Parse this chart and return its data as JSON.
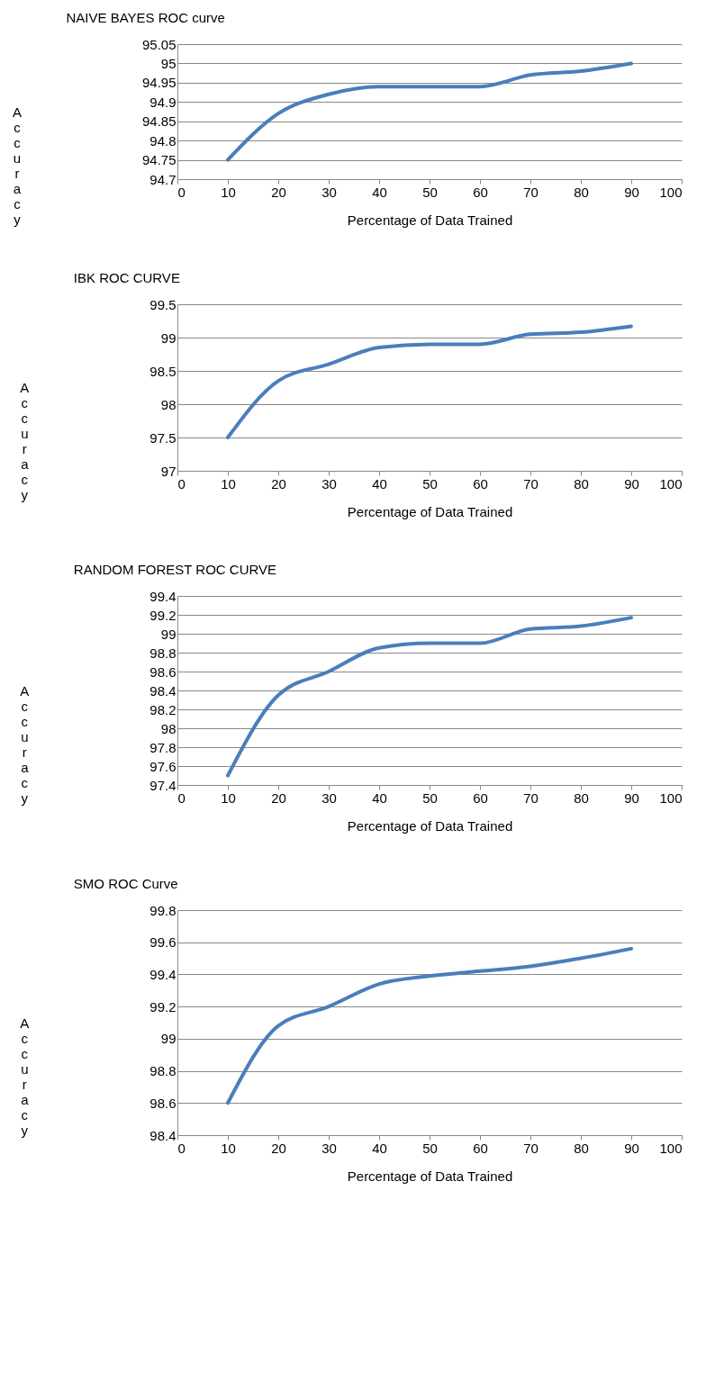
{
  "chart_data": [
    {
      "type": "line",
      "title": "NAIVE BAYES ROC curve",
      "xlabel": "Percentage of Data Trained",
      "ylabel": "Accuracy",
      "x": [
        10,
        20,
        30,
        40,
        50,
        60,
        70,
        80,
        90
      ],
      "series": [
        {
          "color": "#4a7ebb",
          "values": [
            94.75,
            94.87,
            94.92,
            94.94,
            94.94,
            94.94,
            94.97,
            94.98,
            95.0
          ]
        }
      ],
      "xlim": [
        0,
        100
      ],
      "xticks": [
        0,
        10,
        20,
        30,
        40,
        50,
        60,
        70,
        80,
        90,
        100
      ],
      "ylim": [
        94.7,
        95.05
      ],
      "yticks": [
        94.7,
        94.75,
        94.8,
        94.85,
        94.9,
        94.95,
        95,
        95.05
      ],
      "grid": "y",
      "legend": false,
      "marker": "none"
    },
    {
      "type": "line",
      "title": "IBK  ROC CURVE",
      "xlabel": "Percentage of Data Trained",
      "ylabel": "Accuracy",
      "x": [
        10,
        20,
        30,
        40,
        50,
        60,
        70,
        80,
        90
      ],
      "series": [
        {
          "color": "#4a7ebb",
          "values": [
            97.5,
            98.35,
            98.6,
            98.85,
            98.9,
            98.9,
            99.05,
            99.08,
            99.17
          ]
        }
      ],
      "xlim": [
        0,
        100
      ],
      "xticks": [
        0,
        10,
        20,
        30,
        40,
        50,
        60,
        70,
        80,
        90,
        100
      ],
      "ylim": [
        97,
        99.5
      ],
      "yticks": [
        97,
        97.5,
        98,
        98.5,
        99,
        99.5
      ],
      "grid": "y",
      "legend": false,
      "marker": "none"
    },
    {
      "type": "line",
      "title": "RANDOM FOREST ROC CURVE",
      "xlabel": "Percentage of Data Trained",
      "ylabel": "Accuracy",
      "x": [
        10,
        20,
        30,
        40,
        50,
        60,
        70,
        80,
        90
      ],
      "series": [
        {
          "color": "#4a7ebb",
          "values": [
            97.5,
            98.35,
            98.6,
            98.85,
            98.9,
            98.9,
            99.05,
            99.08,
            99.17
          ]
        }
      ],
      "xlim": [
        0,
        100
      ],
      "xticks": [
        0,
        10,
        20,
        30,
        40,
        50,
        60,
        70,
        80,
        90,
        100
      ],
      "ylim": [
        97.4,
        99.4
      ],
      "yticks": [
        97.4,
        97.6,
        97.8,
        98,
        98.2,
        98.4,
        98.6,
        98.8,
        99,
        99.2,
        99.4
      ],
      "grid": "y",
      "legend": false,
      "marker": "none"
    },
    {
      "type": "line",
      "title": "SMO ROC Curve",
      "xlabel": "Percentage of Data Trained",
      "ylabel": "Accuracy",
      "x": [
        10,
        20,
        30,
        40,
        50,
        60,
        70,
        80,
        90
      ],
      "series": [
        {
          "color": "#4a7ebb",
          "values": [
            98.6,
            99.08,
            99.2,
            99.34,
            99.39,
            99.42,
            99.45,
            99.5,
            99.56
          ]
        }
      ],
      "xlim": [
        0,
        100
      ],
      "xticks": [
        0,
        10,
        20,
        30,
        40,
        50,
        60,
        70,
        80,
        90,
        100
      ],
      "ylim": [
        98.4,
        99.8
      ],
      "yticks": [
        98.4,
        98.6,
        98.8,
        99,
        99.2,
        99.4,
        99.6,
        99.8
      ],
      "grid": "y",
      "legend": false,
      "marker": "none"
    }
  ]
}
